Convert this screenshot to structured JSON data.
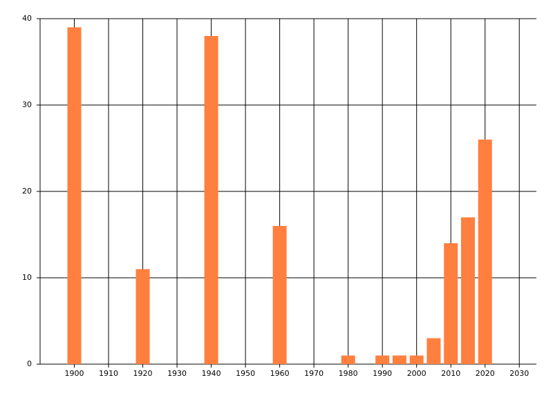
{
  "chart_data": {
    "type": "bar",
    "x": [
      1900,
      1920,
      1940,
      1960,
      1980,
      1990,
      1995,
      2000,
      2005,
      2010,
      2015,
      2020
    ],
    "values": [
      39,
      11,
      38,
      16,
      1,
      1,
      1,
      1,
      3,
      14,
      17,
      26
    ],
    "color": "#ff7f3f",
    "xlim": [
      1890,
      2035
    ],
    "xticks": [
      1900,
      1910,
      1920,
      1930,
      1940,
      1950,
      1960,
      1970,
      1980,
      1990,
      2000,
      2010,
      2020,
      2030
    ],
    "ylim": [
      0,
      40
    ],
    "yticks": [
      0,
      10,
      20,
      30,
      40
    ],
    "grid": true
  }
}
